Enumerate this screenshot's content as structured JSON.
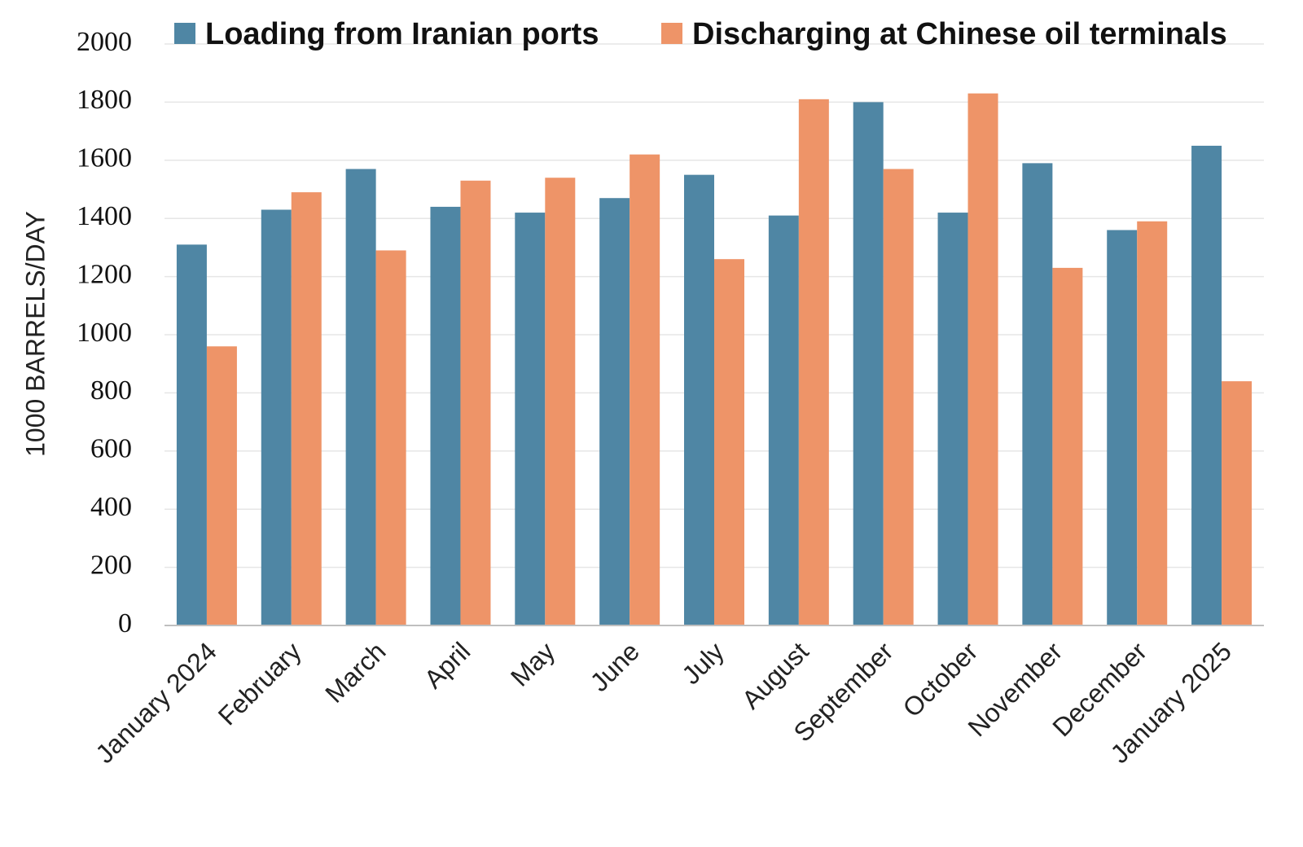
{
  "chart_data": {
    "type": "bar",
    "ylabel": "1000 BARRELS/DAY",
    "ylim": [
      0,
      2000
    ],
    "yticks": [
      0,
      200,
      400,
      600,
      800,
      1000,
      1200,
      1400,
      1600,
      1800,
      2000
    ],
    "grid": true,
    "legend_position": "top",
    "categories": [
      "January 2024",
      "February",
      "March",
      "April",
      "May",
      "June",
      "July",
      "August",
      "September",
      "October",
      "November",
      "December",
      "January 2025"
    ],
    "series": [
      {
        "name": "Loading from Iranian ports",
        "color": "#4f86a4",
        "values": [
          1310,
          1430,
          1570,
          1440,
          1420,
          1470,
          1550,
          1410,
          1800,
          1420,
          1590,
          1360,
          1650
        ]
      },
      {
        "name": "Discharging at Chinese oil terminals",
        "color": "#ee9468",
        "values": [
          960,
          1490,
          1290,
          1530,
          1540,
          1620,
          1260,
          1810,
          1570,
          1830,
          1230,
          1390,
          840
        ]
      }
    ]
  }
}
